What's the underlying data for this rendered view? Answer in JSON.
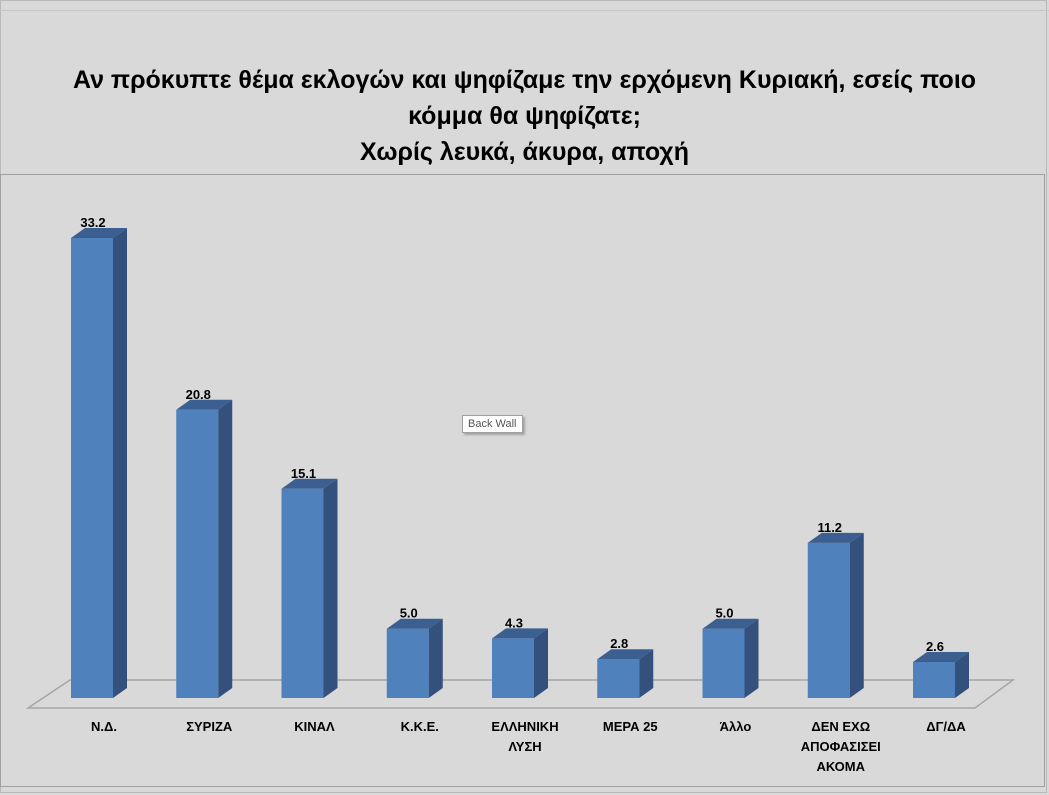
{
  "chart_data": {
    "type": "bar",
    "title_lines": [
      "Αν πρόκυπτε θέμα εκλογών και ψηφίζαμε την ερχόμενη Κυριακή, εσείς ποιο",
      "κόμμα θα ψηφίζατε;",
      "Χωρίς λευκά, άκυρα, αποχή"
    ],
    "categories": [
      [
        "Ν.Δ."
      ],
      [
        "ΣΥΡΙΖΑ"
      ],
      [
        "ΚΙΝΑΛ"
      ],
      [
        "Κ.Κ.Ε."
      ],
      [
        "ΕΛΛΗΝΙΚΗ",
        "ΛΥΣΗ"
      ],
      [
        "ΜΕΡΑ 25"
      ],
      [
        "Άλλο"
      ],
      [
        "ΔΕΝ ΕΧΩ",
        "ΑΠΟΦΑΣΙΣΕΙ",
        "ΑΚΟΜΑ"
      ],
      [
        "ΔΓ/ΔΑ"
      ]
    ],
    "values": [
      33.2,
      20.8,
      15.1,
      5.0,
      4.3,
      2.8,
      5.0,
      11.2,
      2.6
    ],
    "data_labels": [
      "33.2",
      "20.8",
      "15.1",
      "5.0",
      "4.3",
      "2.8",
      "5.0",
      "11.2",
      "2.6"
    ],
    "xlabel": "",
    "ylabel": "",
    "ylim": [
      0,
      33.2
    ],
    "grid": false,
    "legend": "none",
    "bar_color": "#4f81bd",
    "bar_side_color": "#34507c",
    "bar_top_color": "#3c5f91"
  },
  "tooltip": {
    "label": "Back Wall"
  },
  "colors": {
    "background": "#d9d9d9",
    "floor_stroke": "#a6a6a6"
  }
}
